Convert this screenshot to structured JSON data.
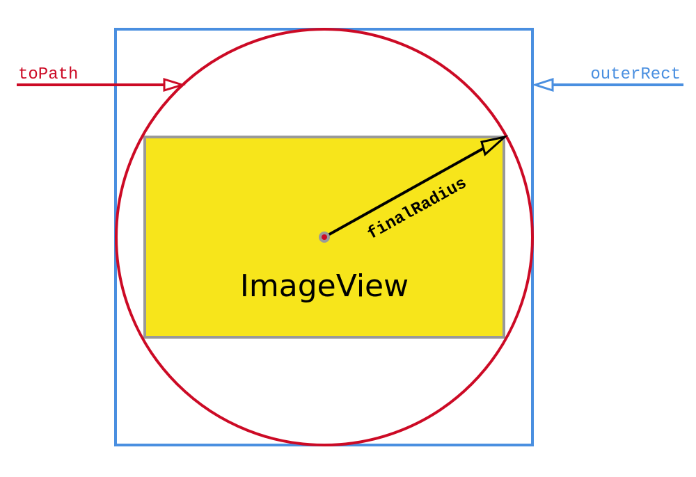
{
  "labels": {
    "to_path": "toPath",
    "outer_rect": "outerRect",
    "final_radius": "finalRadius",
    "image_view": "ImageView"
  },
  "colors": {
    "to_path": "#cc0a25",
    "outer_rect": "#4a8fe0",
    "image_view_fill": "#f7e51b",
    "image_view_border": "#999999",
    "radius_arrow": "#000000"
  }
}
